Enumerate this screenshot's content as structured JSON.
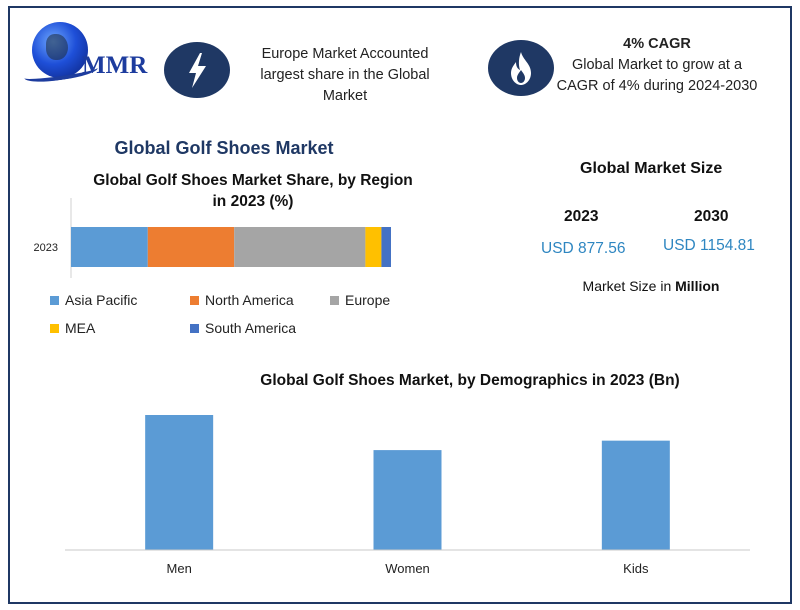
{
  "logo": {
    "text": "MMR"
  },
  "icons": {
    "left": "lightning-bolt",
    "right": "flame"
  },
  "highlights": {
    "europe": {
      "line1": "Europe Market Accounted",
      "line2": "largest share in the Global",
      "line3": "Market"
    },
    "cagr": {
      "headline": "4% CAGR",
      "line1": "Global Market to grow at a",
      "line2": "CAGR of 4% during 2024-2030"
    }
  },
  "main_title": "Global Golf Shoes Market",
  "market_size": {
    "title": "Global Market Size",
    "year_a": "2023",
    "value_a": "USD 877.56",
    "year_b": "2030",
    "value_b": "USD 1154.81",
    "note_prefix": "Market Size in ",
    "note_unit": "Million"
  },
  "colors": {
    "frame": "#1f3864",
    "accent": "#2e86c1"
  },
  "chart_data": [
    {
      "type": "bar",
      "orientation": "horizontal-stacked",
      "title_line1": "Global Golf Shoes Market Share, by Region",
      "title_line2": "in 2023 (%)",
      "categories": [
        "2023"
      ],
      "series": [
        {
          "name": "Asia Pacific",
          "color": "#5b9bd5",
          "values": [
            24
          ]
        },
        {
          "name": "North America",
          "color": "#ed7d31",
          "values": [
            27
          ]
        },
        {
          "name": "Europe",
          "color": "#a5a5a5",
          "values": [
            41
          ]
        },
        {
          "name": "MEA",
          "color": "#ffc000",
          "values": [
            5
          ]
        },
        {
          "name": "South America",
          "color": "#4472c4",
          "values": [
            3
          ]
        }
      ],
      "xlim": [
        0,
        100
      ],
      "legend": "bottom",
      "grid": false
    },
    {
      "type": "bar",
      "title": "Global Golf Shoes Market, by Demographics in 2023 (Bn)",
      "categories": [
        "Men",
        "Women",
        "Kids"
      ],
      "values": [
        1.0,
        0.74,
        0.81
      ],
      "ylim": [
        0,
        1.0
      ],
      "color": "#5b9bd5",
      "grid": false
    }
  ]
}
